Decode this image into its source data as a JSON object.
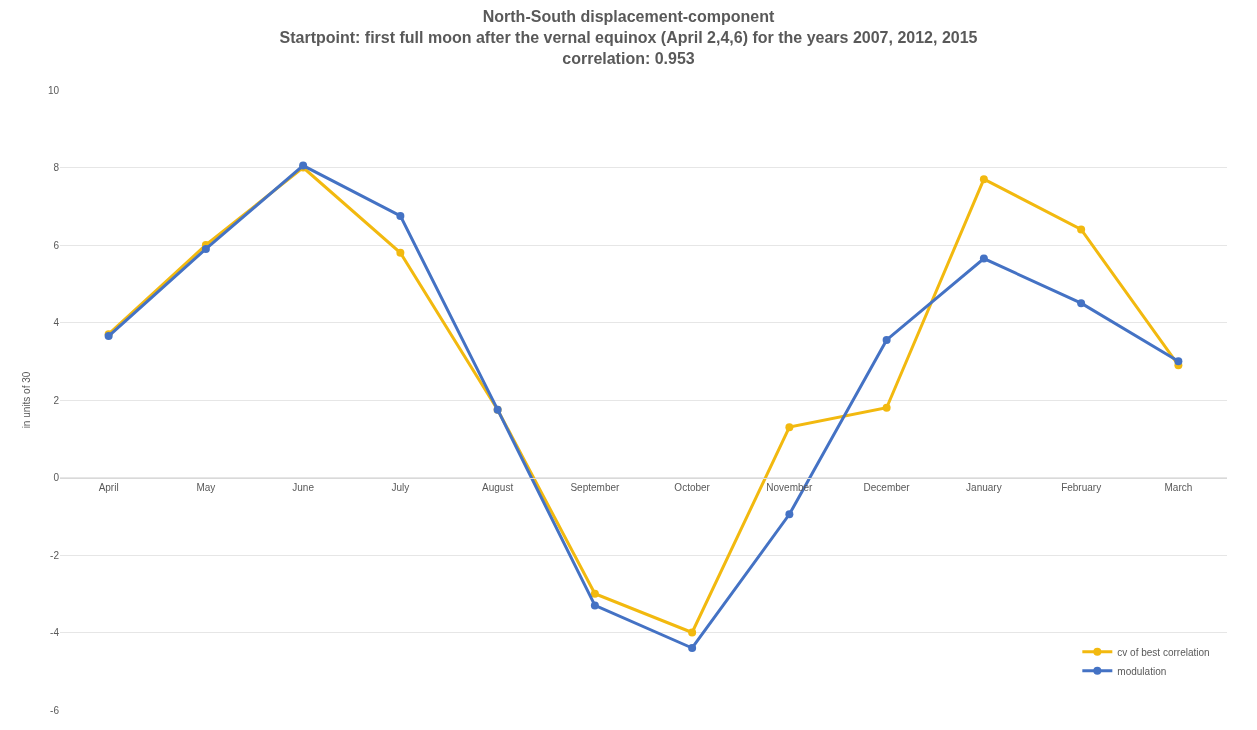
{
  "chart_data": {
    "type": "line",
    "title": "North-South displacement-component",
    "subtitle": "Startpoint: first full moon after the vernal equinox (April 2,4,6) for the years 2007, 2012, 2015\ncorrelation: 0.953",
    "ylabel": "in units of 30",
    "categories": [
      "April",
      "May",
      "June",
      "July",
      "August",
      "September",
      "October",
      "November",
      "December",
      "January",
      "February",
      "March"
    ],
    "series": [
      {
        "name": "cv of best correlation",
        "color": "#f2b90f",
        "values": [
          3.7,
          6.0,
          8.0,
          5.8,
          1.75,
          -3.0,
          -4.0,
          1.3,
          1.8,
          7.7,
          6.4,
          2.9
        ]
      },
      {
        "name": "modulation",
        "color": "#4472c4",
        "values": [
          3.65,
          5.9,
          8.05,
          6.75,
          1.75,
          -3.3,
          -4.4,
          -0.95,
          3.55,
          5.65,
          4.5,
          3.0
        ]
      }
    ],
    "ylim": [
      -6,
      10
    ],
    "yticks": [
      -6,
      -4,
      -2,
      0,
      2,
      4,
      6,
      8,
      10
    ],
    "grid": "y",
    "legend": "bottom right",
    "marker": "circle",
    "line_style": "solid"
  }
}
